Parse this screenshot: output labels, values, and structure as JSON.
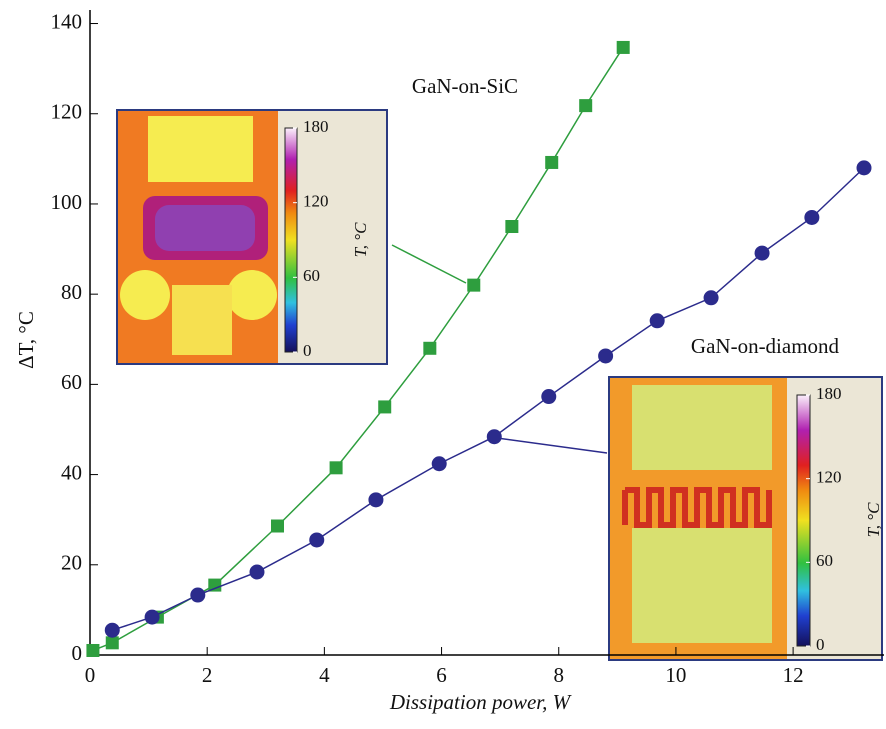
{
  "chart_data": {
    "type": "line",
    "xlabel": "Dissipation power, W",
    "ylabel": "ΔT, °C",
    "xlim": [
      0,
      13.5
    ],
    "ylim": [
      0,
      143
    ],
    "xticks": [
      0,
      2,
      4,
      6,
      8,
      10,
      12
    ],
    "yticks": [
      0,
      20,
      40,
      60,
      80,
      100,
      120,
      140
    ],
    "series": [
      {
        "name": "GaN-on-SiC",
        "color": "#2e9e3e",
        "marker": "square",
        "x": [
          0.05,
          0.38,
          1.15,
          2.13,
          3.2,
          4.2,
          5.03,
          5.8,
          6.55,
          7.2,
          7.88,
          8.46,
          9.1
        ],
        "values": [
          1,
          2.7,
          8.4,
          15.5,
          28.6,
          41.5,
          55,
          68,
          82,
          95,
          109.2,
          121.8,
          134.7
        ]
      },
      {
        "name": "GaN-on-diamond",
        "color": "#2b2b8c",
        "marker": "circle",
        "x": [
          0.38,
          1.06,
          1.84,
          2.85,
          3.87,
          4.88,
          5.96,
          6.9,
          7.83,
          8.8,
          9.68,
          10.6,
          11.47,
          12.32,
          13.21
        ],
        "values": [
          5.5,
          8.4,
          13.3,
          18.4,
          25.5,
          34.4,
          42.4,
          48.4,
          57.3,
          66.3,
          74.1,
          79.2,
          89.1,
          97,
          108
        ]
      }
    ],
    "colorbar_label": "T, °C",
    "colorbar_ticks": [
      0,
      60,
      120,
      180
    ]
  }
}
